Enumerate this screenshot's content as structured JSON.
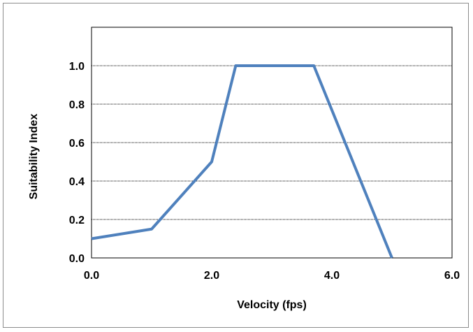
{
  "chart_data": {
    "type": "line",
    "title": "",
    "xlabel": "Velocity (fps)",
    "ylabel": "Suitability Index",
    "xlim": [
      0,
      6
    ],
    "ylim": [
      0,
      1.2
    ],
    "x_ticks": [
      "0.0",
      "2.0",
      "4.0",
      "6.0"
    ],
    "y_ticks": [
      "0.0",
      "0.2",
      "0.4",
      "0.6",
      "0.8",
      "1.0"
    ],
    "grid": "horizontal-dotted",
    "legend": "none",
    "series": [
      {
        "color": "#4f81bd",
        "points": [
          {
            "x": 0.0,
            "y": 0.1
          },
          {
            "x": 1.0,
            "y": 0.15
          },
          {
            "x": 2.0,
            "y": 0.5
          },
          {
            "x": 2.4,
            "y": 1.0
          },
          {
            "x": 3.7,
            "y": 1.0
          },
          {
            "x": 5.0,
            "y": 0.0
          }
        ]
      }
    ]
  }
}
